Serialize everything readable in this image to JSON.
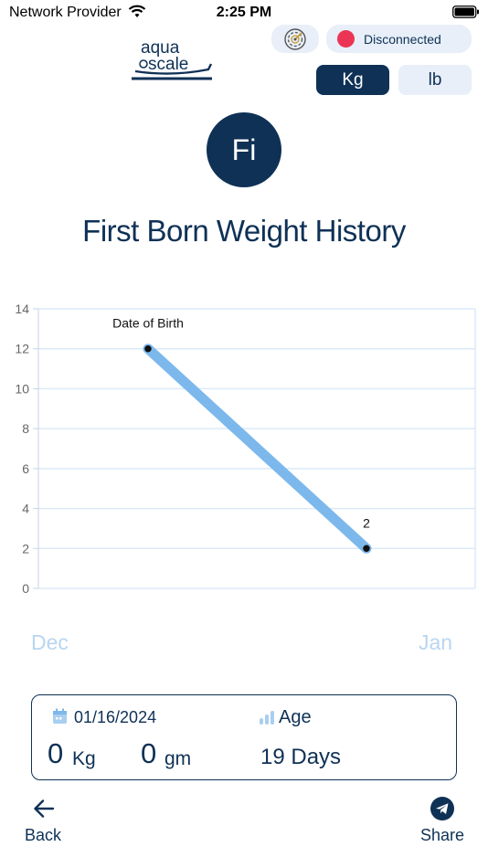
{
  "status_bar": {
    "carrier": "Network Provider",
    "time": "2:25 PM"
  },
  "header": {
    "logo_line1": "aqua",
    "logo_line2": "scale",
    "connection_status": "Disconnected",
    "connection_color": "#ec3554",
    "scan_icon": "radar-scan-icon"
  },
  "units": {
    "kg_label": "Kg",
    "lb_label": "lb",
    "selected": "Kg"
  },
  "profile": {
    "initials": "Fi",
    "title": "First Born Weight History"
  },
  "chart_data": {
    "type": "line",
    "x": [
      "Date of Birth",
      "2024-01-16"
    ],
    "values": [
      12,
      2
    ],
    "point_labels": [
      "Date of Birth",
      "2"
    ],
    "ylim": [
      0,
      14
    ],
    "yticks": [
      "0",
      "2",
      "4",
      "6",
      "8",
      "10",
      "12",
      "14"
    ],
    "month_labels": [
      "Dec",
      "Jan"
    ],
    "grid": true,
    "line_color": "#7cb8ec",
    "grid_color": "#dbeaf8"
  },
  "summary": {
    "date": "01/16/2024",
    "age_label": "Age",
    "kg_value": "0",
    "kg_unit": "Kg",
    "gm_value": "0",
    "gm_unit": "gm",
    "age_value": "19 Days"
  },
  "footer": {
    "back_label": "Back",
    "share_label": "Share"
  },
  "colors": {
    "primary": "#0f3156",
    "pill_bg": "#e8eff8",
    "month_color": "#b9d6f0"
  }
}
